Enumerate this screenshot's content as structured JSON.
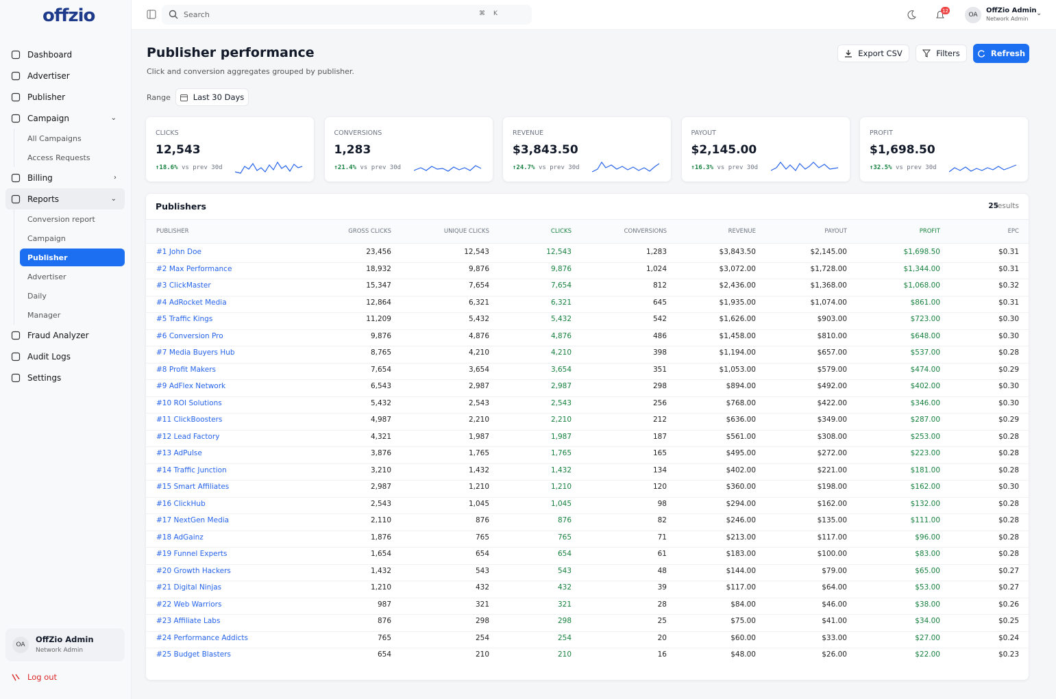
{
  "sidebar": {
    "logo": "offzio",
    "nav": [
      {
        "label": "Dashboard"
      },
      {
        "label": "Advertiser"
      },
      {
        "label": "Publisher"
      },
      {
        "label": "Campaign",
        "children": [
          "All Campaigns",
          "Access Requests"
        ]
      },
      {
        "label": "Billing"
      },
      {
        "label": "Reports",
        "children": [
          "Conversion report",
          "Campaign",
          "Publisher",
          "Advertiser",
          "Daily",
          "Manager"
        ]
      },
      {
        "label": "Fraud Analyzer"
      },
      {
        "label": "Audit Logs"
      },
      {
        "label": "Settings"
      }
    ],
    "user": {
      "initials": "OA",
      "name": "OffZio Admin",
      "role": "Network Admin"
    },
    "logout": "Log out"
  },
  "topbar": {
    "search": "Search",
    "shortcut": [
      "⌘",
      "K"
    ],
    "notifications": "12",
    "user": {
      "initials": "OA",
      "name": "OffZio Admin",
      "role": "Network Admin"
    }
  },
  "header": {
    "title": "Publisher performance",
    "subtitle": "Click and conversion aggregates grouped by publisher.",
    "buttons": [
      "Export CSV",
      "Filters",
      "Refresh"
    ],
    "range_label": "Range",
    "range_value": "Last 30 Days"
  },
  "kpis": [
    {
      "label": "CLICKS",
      "value": "12,543",
      "change": "↑18.6%",
      "compare": "vs prev 30d"
    },
    {
      "label": "CONVERSIONS",
      "value": "1,283",
      "change": "↑21.4%",
      "compare": "vs prev 30d"
    },
    {
      "label": "REVENUE",
      "value": "$3,843.50",
      "change": "↑24.7%",
      "compare": "vs prev 30d"
    },
    {
      "label": "PAYOUT",
      "value": "$2,145.00",
      "change": "↑16.3%",
      "compare": "vs prev 30d"
    },
    {
      "label": "PROFIT",
      "value": "$1,698.50",
      "change": "↑32.5%",
      "compare": "vs prev 30d"
    }
  ],
  "table": {
    "title": "Publishers",
    "count": "25",
    "count_label": "results",
    "columns": [
      "PUBLISHER",
      "GROSS CLICKS",
      "UNIQUE CLICKS",
      "CLICKS",
      "CONVERSIONS",
      "REVENUE",
      "PAYOUT",
      "PROFIT",
      "EPC"
    ],
    "rows": [
      [
        "#1 John Doe",
        "23,456",
        "12,543",
        "12,543",
        "1,283",
        "$3,843.50",
        "$2,145.00",
        "$1,698.50",
        "$0.31"
      ],
      [
        "#2 Max Performance",
        "18,932",
        "9,876",
        "9,876",
        "1,024",
        "$3,072.00",
        "$1,728.00",
        "$1,344.00",
        "$0.31"
      ],
      [
        "#3 ClickMaster",
        "15,347",
        "7,654",
        "7,654",
        "812",
        "$2,436.00",
        "$1,368.00",
        "$1,068.00",
        "$0.32"
      ],
      [
        "#4 AdRocket Media",
        "12,864",
        "6,321",
        "6,321",
        "645",
        "$1,935.00",
        "$1,074.00",
        "$861.00",
        "$0.31"
      ],
      [
        "#5 Traffic Kings",
        "11,209",
        "5,432",
        "5,432",
        "542",
        "$1,626.00",
        "$903.00",
        "$723.00",
        "$0.30"
      ],
      [
        "#6 Conversion Pro",
        "9,876",
        "4,876",
        "4,876",
        "486",
        "$1,458.00",
        "$810.00",
        "$648.00",
        "$0.30"
      ],
      [
        "#7 Media Buyers Hub",
        "8,765",
        "4,210",
        "4,210",
        "398",
        "$1,194.00",
        "$657.00",
        "$537.00",
        "$0.28"
      ],
      [
        "#8 Profit Makers",
        "7,654",
        "3,654",
        "3,654",
        "351",
        "$1,053.00",
        "$579.00",
        "$474.00",
        "$0.29"
      ],
      [
        "#9 AdFlex Network",
        "6,543",
        "2,987",
        "2,987",
        "298",
        "$894.00",
        "$492.00",
        "$402.00",
        "$0.30"
      ],
      [
        "#10 ROI Solutions",
        "5,432",
        "2,543",
        "2,543",
        "256",
        "$768.00",
        "$422.00",
        "$346.00",
        "$0.30"
      ],
      [
        "#11 ClickBoosters",
        "4,987",
        "2,210",
        "2,210",
        "212",
        "$636.00",
        "$349.00",
        "$287.00",
        "$0.29"
      ],
      [
        "#12 Lead Factory",
        "4,321",
        "1,987",
        "1,987",
        "187",
        "$561.00",
        "$308.00",
        "$253.00",
        "$0.28"
      ],
      [
        "#13 AdPulse",
        "3,876",
        "1,765",
        "1,765",
        "165",
        "$495.00",
        "$272.00",
        "$223.00",
        "$0.28"
      ],
      [
        "#14 Traffic Junction",
        "3,210",
        "1,432",
        "1,432",
        "134",
        "$402.00",
        "$221.00",
        "$181.00",
        "$0.28"
      ],
      [
        "#15 Smart Affiliates",
        "2,987",
        "1,210",
        "1,210",
        "120",
        "$360.00",
        "$198.00",
        "$162.00",
        "$0.30"
      ],
      [
        "#16 ClickHub",
        "2,543",
        "1,045",
        "1,045",
        "98",
        "$294.00",
        "$162.00",
        "$132.00",
        "$0.28"
      ],
      [
        "#17 NextGen Media",
        "2,110",
        "876",
        "876",
        "82",
        "$246.00",
        "$135.00",
        "$111.00",
        "$0.28"
      ],
      [
        "#18 AdGainz",
        "1,876",
        "765",
        "765",
        "71",
        "$213.00",
        "$117.00",
        "$96.00",
        "$0.28"
      ],
      [
        "#19 Funnel Experts",
        "1,654",
        "654",
        "654",
        "61",
        "$183.00",
        "$100.00",
        "$83.00",
        "$0.28"
      ],
      [
        "#20 Growth Hackers",
        "1,432",
        "543",
        "543",
        "48",
        "$144.00",
        "$79.00",
        "$65.00",
        "$0.27"
      ],
      [
        "#21 Digital Ninjas",
        "1,210",
        "432",
        "432",
        "39",
        "$117.00",
        "$64.00",
        "$53.00",
        "$0.27"
      ],
      [
        "#22 Web Warriors",
        "987",
        "321",
        "321",
        "28",
        "$84.00",
        "$46.00",
        "$38.00",
        "$0.26"
      ],
      [
        "#23 Affiliate Labs",
        "876",
        "298",
        "298",
        "25",
        "$75.00",
        "$41.00",
        "$34.00",
        "$0.25"
      ],
      [
        "#24 Performance Addicts",
        "765",
        "254",
        "254",
        "20",
        "$60.00",
        "$33.00",
        "$27.00",
        "$0.24"
      ],
      [
        "#25 Budget Blasters",
        "654",
        "210",
        "210",
        "16",
        "$48.00",
        "$26.00",
        "$22.00",
        "$0.23"
      ]
    ]
  }
}
